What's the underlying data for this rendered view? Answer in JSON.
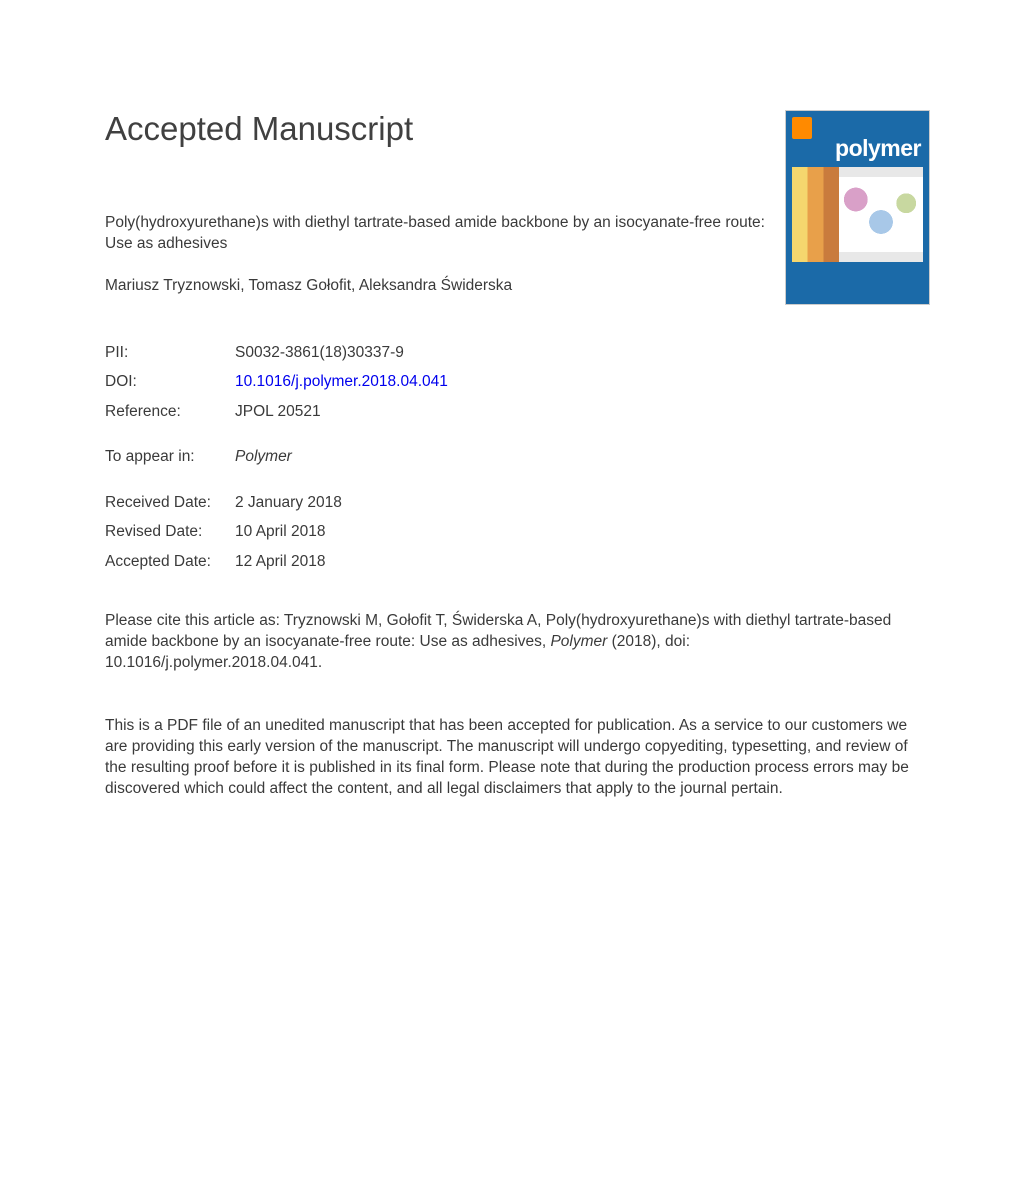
{
  "heading": "Accepted Manuscript",
  "article_title": "Poly(hydroxyurethane)s with diethyl tartrate-based amide backbone by an isocyanate-free route: Use as adhesives",
  "authors": "Mariusz Tryznowski, Tomasz Gołofit, Aleksandra Świderska",
  "meta": {
    "pii_label": "PII:",
    "pii_value": "S0032-3861(18)30337-9",
    "doi_label": "DOI:",
    "doi_value": "10.1016/j.polymer.2018.04.041",
    "ref_label": "Reference:",
    "ref_value": "JPOL 20521",
    "appear_label": "To appear in:",
    "appear_value": "Polymer",
    "received_label": "Received Date:",
    "received_value": "2 January 2018",
    "revised_label": "Revised Date:",
    "revised_value": "10 April 2018",
    "accepted_label": "Accepted Date:",
    "accepted_value": "12 April 2018"
  },
  "citation_prefix": "Please cite this article as: Tryznowski M, Gołofit T, Świderska A, Poly(hydroxyurethane)s with diethyl tartrate-based amide backbone by an isocyanate-free route: Use as adhesives, ",
  "citation_journal": "Polymer",
  "citation_suffix": " (2018), doi: 10.1016/j.polymer.2018.04.041.",
  "disclaimer": "This is a PDF file of an unedited manuscript that has been accepted for publication. As a service to our customers we are providing this early version of the manuscript. The manuscript will undergo copyediting, typesetting, and review of the resulting proof before it is published in its final form. Please note that during the production process errors may be discovered which could affect the content, and all legal disclaimers that apply to the journal pertain.",
  "cover": {
    "journal_name": "polymer",
    "background_color": "#1b6aa8",
    "logo_color": "#ff8a00"
  }
}
